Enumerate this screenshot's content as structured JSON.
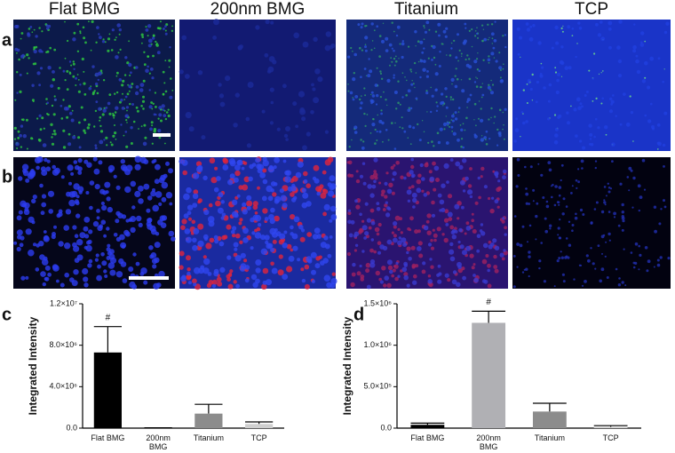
{
  "headers": [
    "Flat BMG",
    "200nm BMG",
    "Titanium",
    "TCP"
  ],
  "panel_labels": [
    "a",
    "b"
  ],
  "chart_data": [
    {
      "type": "bar",
      "panel": "c",
      "ylabel": "Integrated Intensity",
      "categories": [
        "Flat BMG",
        "200nm BMG",
        "Titanium",
        "TCP"
      ],
      "values": [
        7300000,
        20000,
        1400000,
        400000
      ],
      "errors": [
        2500000,
        10000,
        900000,
        200000
      ],
      "colors": [
        "#000000",
        "#000000",
        "#8c8c8c",
        "#cfcfcf"
      ],
      "annotations": [
        "#",
        null,
        null,
        null
      ],
      "ylim": [
        0,
        12000000
      ],
      "yticks": [
        {
          "value": 0,
          "label": "0.0"
        },
        {
          "value": 4000000,
          "label": "4.0×10⁶"
        },
        {
          "value": 8000000,
          "label": "8.0×10⁶"
        },
        {
          "value": 12000000,
          "label": "1.2×10⁷"
        }
      ]
    },
    {
      "type": "bar",
      "panel": "d",
      "ylabel": "Integrated Intensity",
      "categories": [
        "Flat BMG",
        "200nm BMG",
        "Titanium",
        "TCP"
      ],
      "values": [
        40000,
        1270000,
        200000,
        15000
      ],
      "errors": [
        20000,
        140000,
        100000,
        15000
      ],
      "colors": [
        "#000000",
        "#b0b0b4",
        "#8c8c8c",
        "#cfcfcf"
      ],
      "annotations": [
        null,
        "#",
        null,
        null
      ],
      "ylim": [
        0,
        1500000
      ],
      "yticks": [
        {
          "value": 0,
          "label": "0.0"
        },
        {
          "value": 500000,
          "label": "5.0×10⁵"
        },
        {
          "value": 1000000,
          "label": "1.0×10⁶"
        },
        {
          "value": 1500000,
          "label": "1.5×10⁶"
        }
      ]
    }
  ]
}
